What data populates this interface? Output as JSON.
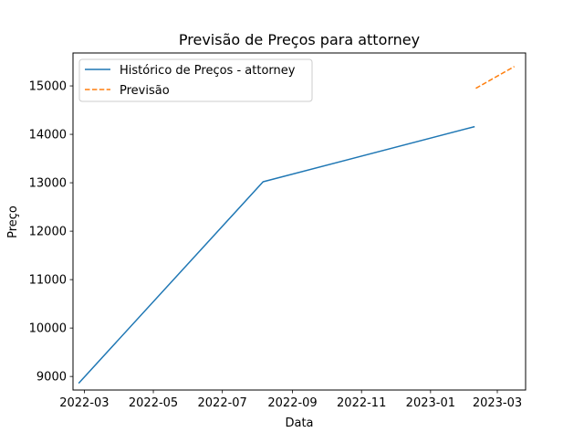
{
  "chart_data": {
    "type": "line",
    "title": "Previsão de Preços para attorney",
    "xlabel": "Data",
    "ylabel": "Preço",
    "x_ticks": [
      "2022-03",
      "2022-05",
      "2022-07",
      "2022-09",
      "2022-11",
      "2023-01",
      "2023-03"
    ],
    "y_ticks": [
      9000,
      10000,
      11000,
      12000,
      13000,
      14000,
      15000
    ],
    "xlim": [
      "2022-02-19",
      "2023-03-26"
    ],
    "ylim": [
      8720,
      15680
    ],
    "grid": false,
    "legend_position": "top-left",
    "series": [
      {
        "name": "Histórico de Preços - attorney",
        "color": "#1f77b4",
        "style": "solid",
        "x": [
          "2022-02-24",
          "2022-08-06",
          "2023-02-09"
        ],
        "y": [
          8860,
          13020,
          14160
        ]
      },
      {
        "name": "Previsão",
        "color": "#ff7f0e",
        "style": "dashed",
        "x": [
          "2023-02-10",
          "2023-03-16"
        ],
        "y": [
          14950,
          15400
        ]
      }
    ]
  }
}
